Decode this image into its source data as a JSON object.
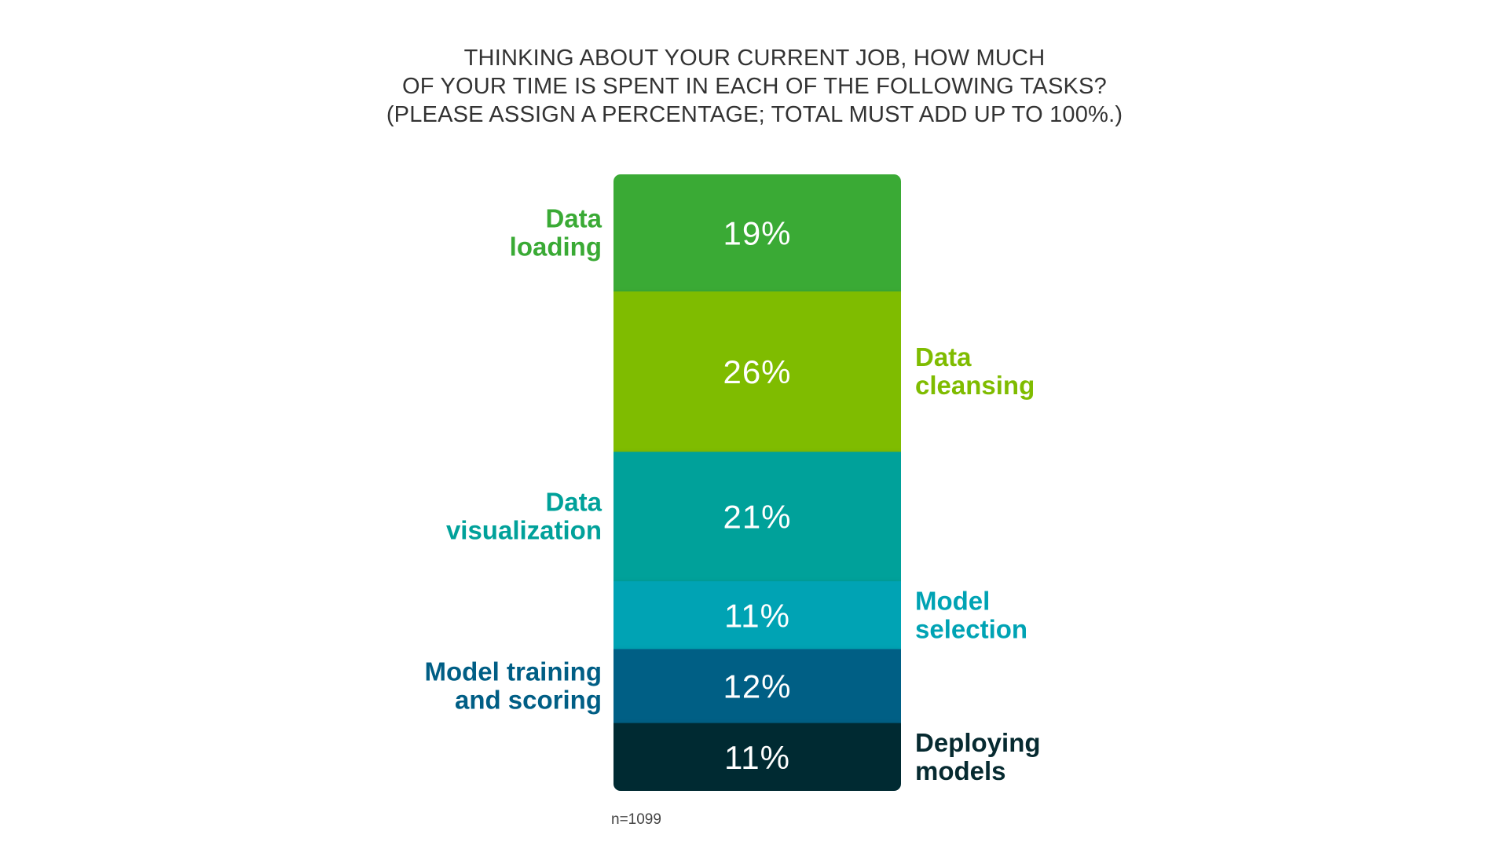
{
  "chart_data": {
    "type": "bar",
    "orientation": "vertical-stacked-100",
    "title": [
      "THINKING ABOUT YOUR CURRENT JOB, HOW MUCH",
      "OF YOUR TIME IS SPENT IN EACH OF THE FOLLOWING TASKS?",
      "(PLEASE ASSIGN A PERCENTAGE; TOTAL MUST ADD UP TO 100%.)"
    ],
    "unit": "%",
    "footnote": "n=1099",
    "segments": [
      {
        "name": [
          "Data",
          "loading"
        ],
        "value": 19,
        "label": "19%",
        "color": "#3aaa35",
        "label_side": "left"
      },
      {
        "name": [
          "Data",
          "cleansing"
        ],
        "value": 26,
        "label": "26%",
        "color": "#7fbc00",
        "label_side": "right"
      },
      {
        "name": [
          "Data",
          "visualization"
        ],
        "value": 21,
        "label": "21%",
        "color": "#00a19a",
        "label_side": "left"
      },
      {
        "name": [
          "Model",
          "selection"
        ],
        "value": 11,
        "label": "11%",
        "color": "#00a3b4",
        "label_side": "right"
      },
      {
        "name": [
          "Model training",
          "and scoring"
        ],
        "value": 12,
        "label": "12%",
        "color": "#005e85",
        "label_side": "left"
      },
      {
        "name": [
          "Deploying",
          "models"
        ],
        "value": 11,
        "label": "11%",
        "color": "#062a30",
        "label_side": "right"
      }
    ]
  }
}
